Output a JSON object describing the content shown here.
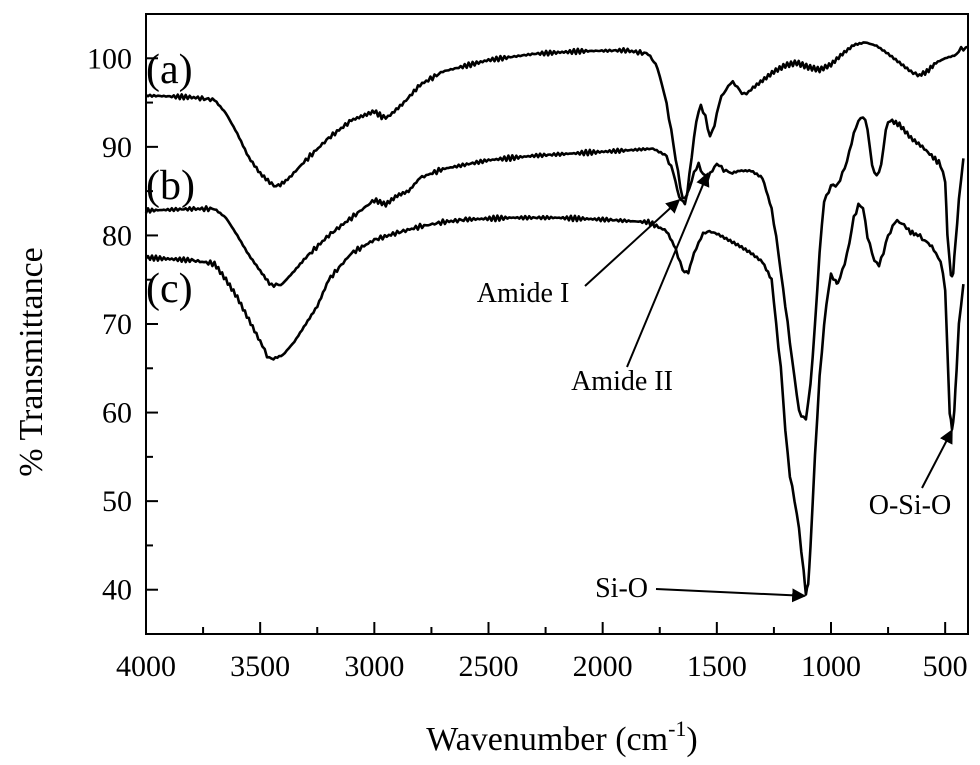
{
  "chart_data": {
    "type": "line",
    "xlabel": "Wavenumber (cm",
    "xlabel_sup": "-1",
    "xlabel_close": ")",
    "ylabel": "% Transmittance",
    "xlim": [
      4000,
      400
    ],
    "ylim": [
      35,
      105
    ],
    "x_reversed": true,
    "grid": false,
    "x_ticks": [
      4000,
      3500,
      3000,
      2500,
      2000,
      1500,
      1000,
      500
    ],
    "y_ticks": [
      40,
      50,
      60,
      70,
      80,
      90,
      100
    ],
    "series": [
      {
        "name": "(a)",
        "points": [
          [
            4000,
            95.8
          ],
          [
            3800,
            95.6
          ],
          [
            3700,
            95.3
          ],
          [
            3650,
            93.8
          ],
          [
            3600,
            91.5
          ],
          [
            3550,
            88.8
          ],
          [
            3500,
            87
          ],
          [
            3450,
            85.8
          ],
          [
            3420,
            85.6
          ],
          [
            3380,
            86.3
          ],
          [
            3300,
            88.5
          ],
          [
            3200,
            91
          ],
          [
            3100,
            93
          ],
          [
            3050,
            93.5
          ],
          [
            3000,
            94
          ],
          [
            2960,
            93.3
          ],
          [
            2930,
            93.6
          ],
          [
            2870,
            95
          ],
          [
            2800,
            97
          ],
          [
            2700,
            98.5
          ],
          [
            2500,
            99.8
          ],
          [
            2300,
            100.5
          ],
          [
            2100,
            100.8
          ],
          [
            1900,
            100.9
          ],
          [
            1800,
            100.5
          ],
          [
            1760,
            99
          ],
          [
            1730,
            96
          ],
          [
            1700,
            92
          ],
          [
            1680,
            88.5
          ],
          [
            1650,
            84.2
          ],
          [
            1630,
            84.5
          ],
          [
            1610,
            89
          ],
          [
            1590,
            93
          ],
          [
            1570,
            94.6
          ],
          [
            1550,
            93.5
          ],
          [
            1530,
            91
          ],
          [
            1510,
            92.5
          ],
          [
            1490,
            95
          ],
          [
            1460,
            96.5
          ],
          [
            1440,
            97.3
          ],
          [
            1410,
            96.8
          ],
          [
            1380,
            95.8
          ],
          [
            1350,
            96.5
          ],
          [
            1300,
            97.5
          ],
          [
            1250,
            98.5
          ],
          [
            1200,
            99.2
          ],
          [
            1150,
            99.5
          ],
          [
            1100,
            99
          ],
          [
            1050,
            98.7
          ],
          [
            1000,
            99.3
          ],
          [
            950,
            100.5
          ],
          [
            900,
            101.5
          ],
          [
            850,
            101.8
          ],
          [
            800,
            101.4
          ],
          [
            750,
            100.5
          ],
          [
            700,
            99.5
          ],
          [
            650,
            98.5
          ],
          [
            620,
            98
          ],
          [
            580,
            98.5
          ],
          [
            540,
            99.5
          ],
          [
            500,
            100
          ],
          [
            460,
            100.3
          ],
          [
            430,
            101
          ],
          [
            400,
            101.3
          ]
        ]
      },
      {
        "name": "(b)",
        "points": [
          [
            4000,
            82.8
          ],
          [
            3800,
            83
          ],
          [
            3700,
            83
          ],
          [
            3650,
            82
          ],
          [
            3600,
            80
          ],
          [
            3550,
            77.8
          ],
          [
            3500,
            76
          ],
          [
            3460,
            74.6
          ],
          [
            3430,
            74.3
          ],
          [
            3400,
            74.6
          ],
          [
            3350,
            76
          ],
          [
            3300,
            77.5
          ],
          [
            3200,
            80
          ],
          [
            3100,
            82
          ],
          [
            3000,
            84
          ],
          [
            2950,
            83.5
          ],
          [
            2900,
            84.5
          ],
          [
            2850,
            85
          ],
          [
            2800,
            86.5
          ],
          [
            2700,
            87.5
          ],
          [
            2500,
            88.5
          ],
          [
            2300,
            89
          ],
          [
            2100,
            89.3
          ],
          [
            1900,
            89.6
          ],
          [
            1780,
            89.8
          ],
          [
            1720,
            89
          ],
          [
            1690,
            87
          ],
          [
            1665,
            84.3
          ],
          [
            1640,
            83.6
          ],
          [
            1620,
            85.5
          ],
          [
            1600,
            87
          ],
          [
            1580,
            88
          ],
          [
            1560,
            87
          ],
          [
            1540,
            86.3
          ],
          [
            1520,
            87.5
          ],
          [
            1500,
            88
          ],
          [
            1470,
            87.5
          ],
          [
            1440,
            87
          ],
          [
            1400,
            87.3
          ],
          [
            1350,
            87.3
          ],
          [
            1300,
            86.5
          ],
          [
            1260,
            83
          ],
          [
            1230,
            78
          ],
          [
            1200,
            72
          ],
          [
            1170,
            66
          ],
          [
            1140,
            60
          ],
          [
            1110,
            59.3
          ],
          [
            1090,
            63
          ],
          [
            1070,
            70
          ],
          [
            1050,
            78
          ],
          [
            1030,
            84
          ],
          [
            1000,
            85.5
          ],
          [
            970,
            85.8
          ],
          [
            940,
            87.5
          ],
          [
            910,
            90.5
          ],
          [
            880,
            93
          ],
          [
            860,
            93.5
          ],
          [
            840,
            92
          ],
          [
            820,
            88
          ],
          [
            800,
            86.5
          ],
          [
            780,
            88
          ],
          [
            760,
            92
          ],
          [
            740,
            93
          ],
          [
            700,
            92.5
          ],
          [
            650,
            91
          ],
          [
            600,
            90
          ],
          [
            560,
            89
          ],
          [
            520,
            88
          ],
          [
            500,
            86
          ],
          [
            490,
            80
          ],
          [
            475,
            75.5
          ],
          [
            465,
            75.8
          ],
          [
            455,
            79
          ],
          [
            440,
            84
          ],
          [
            420,
            88.7
          ]
        ]
      },
      {
        "name": "(c)",
        "points": [
          [
            4000,
            77.5
          ],
          [
            3800,
            77.2
          ],
          [
            3700,
            76.8
          ],
          [
            3650,
            75
          ],
          [
            3600,
            73
          ],
          [
            3550,
            70.5
          ],
          [
            3500,
            68
          ],
          [
            3470,
            66.5
          ],
          [
            3450,
            66
          ],
          [
            3400,
            66.5
          ],
          [
            3350,
            68
          ],
          [
            3300,
            70
          ],
          [
            3250,
            72
          ],
          [
            3200,
            75
          ],
          [
            3100,
            78
          ],
          [
            3000,
            79.5
          ],
          [
            2900,
            80.3
          ],
          [
            2800,
            81
          ],
          [
            2700,
            81.5
          ],
          [
            2600,
            81.8
          ],
          [
            2400,
            82
          ],
          [
            2200,
            82
          ],
          [
            2000,
            81.8
          ],
          [
            1800,
            81.5
          ],
          [
            1720,
            80.5
          ],
          [
            1680,
            78.5
          ],
          [
            1650,
            76
          ],
          [
            1625,
            75.8
          ],
          [
            1600,
            78
          ],
          [
            1570,
            79.8
          ],
          [
            1540,
            80.5
          ],
          [
            1500,
            80.2
          ],
          [
            1450,
            79.5
          ],
          [
            1400,
            78.8
          ],
          [
            1350,
            78
          ],
          [
            1300,
            77
          ],
          [
            1260,
            75
          ],
          [
            1240,
            70
          ],
          [
            1220,
            65
          ],
          [
            1200,
            58
          ],
          [
            1180,
            53
          ],
          [
            1160,
            50
          ],
          [
            1140,
            47
          ],
          [
            1120,
            42
          ],
          [
            1110,
            39.5
          ],
          [
            1100,
            40.5
          ],
          [
            1090,
            45
          ],
          [
            1070,
            55
          ],
          [
            1050,
            64
          ],
          [
            1030,
            70
          ],
          [
            1010,
            74
          ],
          [
            1000,
            75.5
          ],
          [
            980,
            75
          ],
          [
            970,
            74.5
          ],
          [
            950,
            76
          ],
          [
            920,
            79
          ],
          [
            900,
            82
          ],
          [
            880,
            83.5
          ],
          [
            860,
            83
          ],
          [
            840,
            80
          ],
          [
            810,
            77
          ],
          [
            790,
            76.8
          ],
          [
            770,
            78
          ],
          [
            750,
            80
          ],
          [
            720,
            81.5
          ],
          [
            690,
            81.5
          ],
          [
            660,
            80.5
          ],
          [
            620,
            80
          ],
          [
            590,
            79.5
          ],
          [
            550,
            78.5
          ],
          [
            520,
            77
          ],
          [
            500,
            74
          ],
          [
            490,
            67
          ],
          [
            480,
            60
          ],
          [
            470,
            58
          ],
          [
            460,
            60
          ],
          [
            450,
            65
          ],
          [
            440,
            70
          ],
          [
            420,
            74.5
          ]
        ]
      }
    ],
    "annotations": [
      {
        "name": "amide-1",
        "text": "Amide I",
        "arrow_to": [
          1665,
          84
        ]
      },
      {
        "name": "amide-2",
        "text": "Amide II",
        "arrow_to": [
          1540,
          87
        ]
      },
      {
        "name": "si-o",
        "text": "Si-O",
        "arrow_to": [
          1115,
          39.3
        ]
      },
      {
        "name": "o-si-o",
        "text": "O-Si-O",
        "arrow_to": [
          470,
          58
        ]
      }
    ]
  }
}
